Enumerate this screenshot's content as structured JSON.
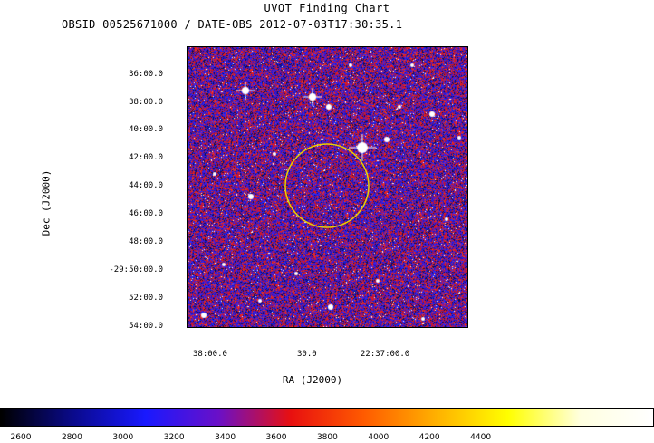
{
  "title": "UVOT Finding Chart",
  "subtitle": "OBSID 00525671000 / DATE-OBS 2012-07-03T17:30:35.1",
  "axes": {
    "ylabel": "Dec (J2000)",
    "xlabel": "RA (J2000)",
    "yticks": [
      "36:00.0",
      "38:00.0",
      "40:00.0",
      "42:00.0",
      "44:00.0",
      "46:00.0",
      "48:00.0",
      "-29:50:00.0",
      "52:00.0",
      "54:00.0"
    ],
    "xticks": [
      "38:00.0",
      "30.0",
      "22:37:00.0"
    ]
  },
  "colorbar": {
    "ticks": [
      "2600",
      "2800",
      "3000",
      "3200",
      "3400",
      "3600",
      "3800",
      "4000",
      "4200",
      "4400"
    ],
    "colors": [
      "#000000",
      "#0a0a8c",
      "#1919ff",
      "#6a10c8",
      "#e81010",
      "#ff5a00",
      "#ffb000",
      "#ffff00",
      "#ffffe0",
      "#ffffff"
    ]
  },
  "marker": {
    "shape": "circle",
    "color": "#e8d000"
  },
  "image_colors": {
    "background": "#3a16b8",
    "noise_red": "#e82018",
    "noise_blue": "#1020ff",
    "star": "#ffffff"
  }
}
